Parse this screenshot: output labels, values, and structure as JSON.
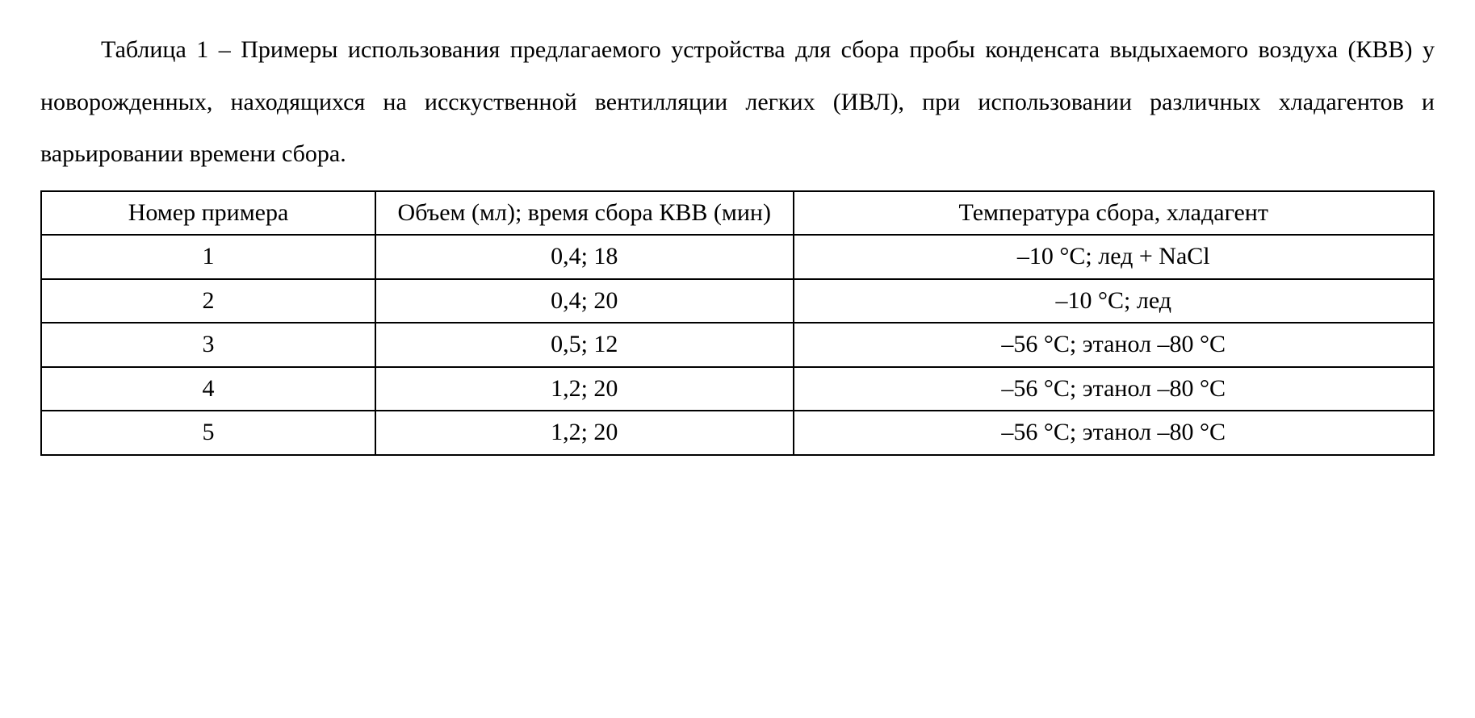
{
  "caption": "Таблица 1 – Примеры использования предлагаемого устройства для сбора пробы конденсата выдыхаемого воздуха (КВВ) у новорожденных, находящихся на ис­скуственной вентилляции легких (ИВЛ), при использовании различных хладагентов и варьировании времени сбора.",
  "table": {
    "type": "table",
    "column_widths_pct": [
      24,
      30,
      46
    ],
    "border_color": "#000000",
    "background_color": "#ffffff",
    "font_family": "Times New Roman",
    "font_size_pt": 18,
    "text_color": "#000000",
    "columns": [
      "Номер примера",
      "Объем (мл); время сбора КВВ (мин)",
      "Температура сбора, хладагент"
    ],
    "rows": [
      [
        "1",
        "0,4; 18",
        "–10 °С; лед + NaCl"
      ],
      [
        "2",
        "0,4; 20",
        "–10 °С; лед"
      ],
      [
        "3",
        "0,5; 12",
        "–56 °С; этанол –80 °С"
      ],
      [
        "4",
        "1,2; 20",
        "–56 °С; этанол –80 °С"
      ],
      [
        "5",
        "1,2; 20",
        "–56 °С; этанол –80 °С"
      ]
    ]
  }
}
